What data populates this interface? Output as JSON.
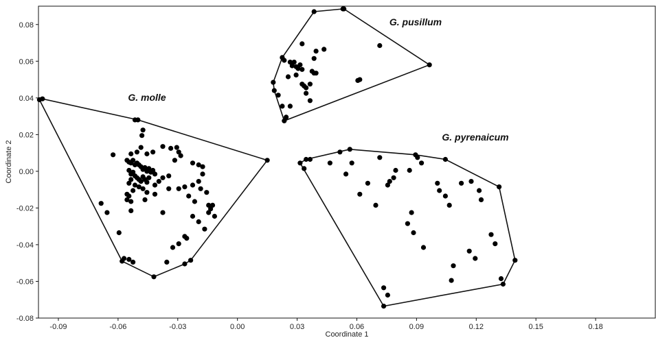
{
  "chart_data": {
    "type": "scatter",
    "title": "",
    "xlabel": "Coordinate 1",
    "ylabel": "Coordinate 2",
    "xlim": [
      -0.1,
      0.21
    ],
    "ylim": [
      -0.08,
      0.09
    ],
    "grid": false,
    "x_ticks": [
      -0.09,
      -0.06,
      -0.03,
      0.0,
      0.03,
      0.06,
      0.09,
      0.12,
      0.15,
      0.18
    ],
    "x_tick_labels": [
      "-0.09",
      "-0.06",
      "-0.03",
      "0.00",
      "0.03",
      "0.06",
      "0.09",
      "0.12",
      "0.15",
      "0.18"
    ],
    "y_ticks": [
      -0.08,
      -0.06,
      -0.04,
      -0.02,
      0.0,
      0.02,
      0.04,
      0.06,
      0.08
    ],
    "y_tick_labels": [
      "-0.08",
      "-0.06",
      "-0.04",
      "-0.02",
      "0.00",
      "0.02",
      "0.04",
      "0.06",
      "0.08"
    ],
    "groups": [
      {
        "label": "G. molle",
        "points": [
          [
            -0.0995,
            0.039
          ],
          [
            -0.098,
            0.0395
          ],
          [
            -0.0515,
            0.028
          ],
          [
            -0.05,
            0.028
          ],
          [
            0.015,
            0.006
          ],
          [
            -0.058,
            -0.049
          ],
          [
            -0.057,
            -0.0475
          ],
          [
            -0.0545,
            -0.048
          ],
          [
            -0.0525,
            -0.0495
          ],
          [
            -0.042,
            -0.0575
          ],
          [
            -0.0265,
            -0.0505
          ],
          [
            -0.0235,
            -0.0485
          ],
          [
            -0.0475,
            0.0225
          ],
          [
            -0.048,
            0.0195
          ],
          [
            -0.0625,
            0.009
          ],
          [
            -0.0535,
            0.0095
          ],
          [
            -0.0505,
            0.0105
          ],
          [
            -0.0485,
            0.013
          ],
          [
            -0.0455,
            0.0095
          ],
          [
            -0.0425,
            0.0105
          ],
          [
            -0.0375,
            0.0135
          ],
          [
            -0.0335,
            0.0125
          ],
          [
            -0.0305,
            0.013
          ],
          [
            -0.0295,
            0.0105
          ],
          [
            -0.0285,
            0.0085
          ],
          [
            -0.0315,
            0.006
          ],
          [
            -0.0225,
            0.0045
          ],
          [
            -0.0195,
            0.0035
          ],
          [
            -0.0175,
            0.0025
          ],
          [
            -0.0175,
            -0.0015
          ],
          [
            -0.0555,
            0.006
          ],
          [
            -0.0545,
            0.005
          ],
          [
            -0.0535,
            0.0045
          ],
          [
            -0.0525,
            0.006
          ],
          [
            -0.0515,
            0.0035
          ],
          [
            -0.0505,
            0.0045
          ],
          [
            -0.0495,
            0.0035
          ],
          [
            -0.0485,
            0.0025
          ],
          [
            -0.0475,
            0.001
          ],
          [
            -0.0465,
            0.002
          ],
          [
            -0.0455,
            0.0
          ],
          [
            -0.0445,
            0.0015
          ],
          [
            -0.0435,
            -0.0005
          ],
          [
            -0.0425,
            0.0005
          ],
          [
            -0.0415,
            -0.0015
          ],
          [
            -0.0545,
            0.0005
          ],
          [
            -0.0535,
            -0.0015
          ],
          [
            -0.0525,
            -0.0005
          ],
          [
            -0.0515,
            -0.0025
          ],
          [
            -0.0505,
            -0.0035
          ],
          [
            -0.0495,
            -0.0045
          ],
          [
            -0.0485,
            -0.0055
          ],
          [
            -0.0475,
            -0.003
          ],
          [
            -0.0465,
            -0.0045
          ],
          [
            -0.0455,
            -0.006
          ],
          [
            -0.0445,
            -0.0035
          ],
          [
            -0.0535,
            -0.0045
          ],
          [
            -0.0545,
            -0.0065
          ],
          [
            -0.0515,
            -0.0075
          ],
          [
            -0.0495,
            -0.0085
          ],
          [
            -0.0525,
            -0.0105
          ],
          [
            -0.0475,
            -0.0095
          ],
          [
            -0.0455,
            -0.0115
          ],
          [
            -0.0415,
            -0.0075
          ],
          [
            -0.0395,
            -0.0055
          ],
          [
            -0.0375,
            -0.0035
          ],
          [
            -0.0345,
            -0.0025
          ],
          [
            -0.0555,
            -0.0125
          ],
          [
            -0.0545,
            -0.0135
          ],
          [
            -0.0555,
            -0.0155
          ],
          [
            -0.0535,
            -0.0165
          ],
          [
            -0.0465,
            -0.0155
          ],
          [
            -0.0415,
            -0.0125
          ],
          [
            -0.0345,
            -0.0095
          ],
          [
            -0.0295,
            -0.0095
          ],
          [
            -0.0265,
            -0.0085
          ],
          [
            -0.0225,
            -0.0075
          ],
          [
            -0.0195,
            -0.0055
          ],
          [
            -0.0185,
            -0.0095
          ],
          [
            -0.0155,
            -0.0115
          ],
          [
            -0.0245,
            -0.0135
          ],
          [
            -0.0215,
            -0.0165
          ],
          [
            -0.0145,
            -0.0185
          ],
          [
            -0.0135,
            -0.0205
          ],
          [
            -0.0125,
            -0.0185
          ],
          [
            -0.0145,
            -0.0225
          ],
          [
            -0.0115,
            -0.0245
          ],
          [
            -0.0685,
            -0.0175
          ],
          [
            -0.0655,
            -0.0225
          ],
          [
            -0.0535,
            -0.0215
          ],
          [
            -0.0375,
            -0.0225
          ],
          [
            -0.0225,
            -0.0245
          ],
          [
            -0.0195,
            -0.0275
          ],
          [
            -0.0265,
            -0.0355
          ],
          [
            -0.0255,
            -0.0365
          ],
          [
            -0.0295,
            -0.0395
          ],
          [
            -0.0325,
            -0.0415
          ],
          [
            -0.0355,
            -0.0495
          ],
          [
            -0.0595,
            -0.0335
          ],
          [
            -0.0165,
            -0.0315
          ]
        ]
      },
      {
        "label": "G. pusillum",
        "points": [
          [
            0.0385,
            0.087
          ],
          [
            0.053,
            0.0885
          ],
          [
            0.0535,
            0.0885
          ],
          [
            0.0965,
            0.058
          ],
          [
            0.0235,
            0.0275
          ],
          [
            0.018,
            0.0485
          ],
          [
            0.0185,
            0.044
          ],
          [
            0.0205,
            0.0415
          ],
          [
            0.0225,
            0.0355
          ],
          [
            0.0245,
            0.0295
          ],
          [
            0.0235,
            0.0605
          ],
          [
            0.0225,
            0.062
          ],
          [
            0.0325,
            0.0695
          ],
          [
            0.0395,
            0.0655
          ],
          [
            0.0435,
            0.0665
          ],
          [
            0.0385,
            0.0615
          ],
          [
            0.0265,
            0.0595
          ],
          [
            0.0275,
            0.0575
          ],
          [
            0.0285,
            0.0595
          ],
          [
            0.0295,
            0.057
          ],
          [
            0.0305,
            0.056
          ],
          [
            0.0315,
            0.058
          ],
          [
            0.0325,
            0.0555
          ],
          [
            0.0295,
            0.0525
          ],
          [
            0.0325,
            0.0475
          ],
          [
            0.0335,
            0.0465
          ],
          [
            0.0345,
            0.0455
          ],
          [
            0.0365,
            0.0475
          ],
          [
            0.0345,
            0.0425
          ],
          [
            0.0365,
            0.0385
          ],
          [
            0.0255,
            0.0515
          ],
          [
            0.0265,
            0.0355
          ],
          [
            0.0375,
            0.0545
          ],
          [
            0.0385,
            0.0535
          ],
          [
            0.0395,
            0.0535
          ],
          [
            0.0605,
            0.0495
          ],
          [
            0.0615,
            0.05
          ],
          [
            0.0715,
            0.0685
          ]
        ]
      },
      {
        "label": "G. pyrenaicum",
        "points": [
          [
            0.0315,
            0.0045
          ],
          [
            0.0345,
            0.0065
          ],
          [
            0.0365,
            0.0065
          ],
          [
            0.0565,
            0.012
          ],
          [
            0.0895,
            0.009
          ],
          [
            0.1045,
            0.0065
          ],
          [
            0.1315,
            -0.0085
          ],
          [
            0.1395,
            -0.0485
          ],
          [
            0.1335,
            -0.0615
          ],
          [
            0.0735,
            -0.0735
          ],
          [
            0.0335,
            0.0015
          ],
          [
            0.0465,
            0.0045
          ],
          [
            0.0515,
            0.0105
          ],
          [
            0.0575,
            0.0045
          ],
          [
            0.0545,
            -0.0015
          ],
          [
            0.0615,
            -0.0125
          ],
          [
            0.0655,
            -0.0065
          ],
          [
            0.0695,
            -0.0185
          ],
          [
            0.0715,
            0.0075
          ],
          [
            0.0765,
            -0.0055
          ],
          [
            0.0755,
            -0.0075
          ],
          [
            0.0785,
            -0.0035
          ],
          [
            0.0795,
            0.0005
          ],
          [
            0.0855,
            -0.0285
          ],
          [
            0.0865,
            0.0005
          ],
          [
            0.0875,
            -0.0225
          ],
          [
            0.0885,
            -0.0335
          ],
          [
            0.0905,
            0.0075
          ],
          [
            0.0925,
            0.0045
          ],
          [
            0.0935,
            -0.0415
          ],
          [
            0.1005,
            -0.0065
          ],
          [
            0.1015,
            -0.0105
          ],
          [
            0.1045,
            -0.0135
          ],
          [
            0.1065,
            -0.0185
          ],
          [
            0.1075,
            -0.0595
          ],
          [
            0.1085,
            -0.0515
          ],
          [
            0.1125,
            -0.0065
          ],
          [
            0.1175,
            -0.0055
          ],
          [
            0.1165,
            -0.0435
          ],
          [
            0.1195,
            -0.0475
          ],
          [
            0.1215,
            -0.0105
          ],
          [
            0.1225,
            -0.0155
          ],
          [
            0.1275,
            -0.0345
          ],
          [
            0.1295,
            -0.0395
          ],
          [
            0.1325,
            -0.0585
          ],
          [
            0.0735,
            -0.0635
          ],
          [
            0.0755,
            -0.0675
          ]
        ]
      }
    ]
  }
}
